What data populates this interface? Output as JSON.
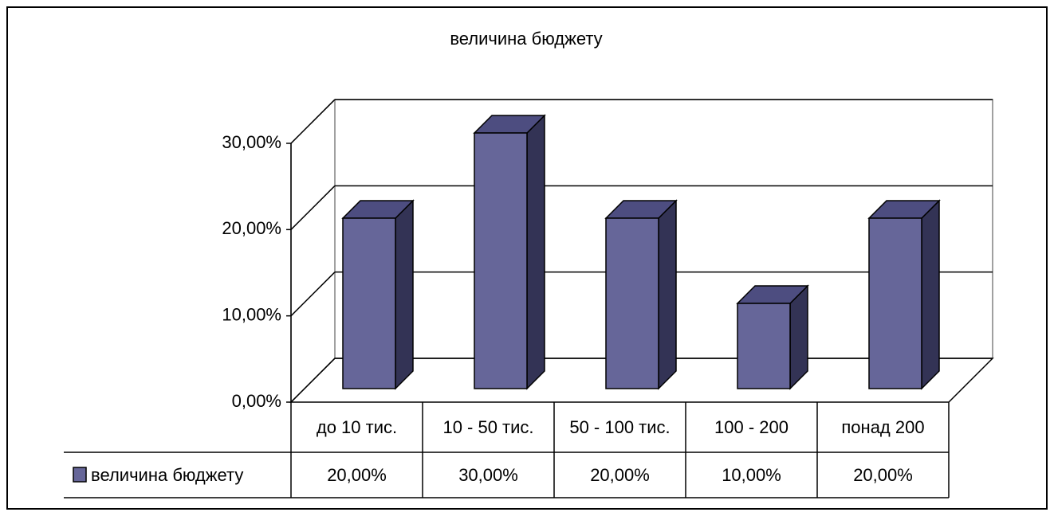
{
  "chart_data": {
    "type": "bar",
    "title": "величина бюджету",
    "categories": [
      "до 10 тис.",
      "10 - 50 тис.",
      "50 - 100 тис.",
      "100 - 200",
      "понад 200"
    ],
    "series": [
      {
        "name": "величина бюджету",
        "color": "#666699",
        "values": [
          20,
          30,
          20,
          10,
          20
        ],
        "value_labels": [
          "20,00%",
          "30,00%",
          "20,00%",
          "10,00%",
          "20,00%"
        ]
      }
    ],
    "ylim": [
      0,
      30
    ],
    "yticks": [
      {
        "value": 0,
        "label": "0,00%"
      },
      {
        "value": 10,
        "label": "10,00%"
      },
      {
        "value": 20,
        "label": "20,00%"
      },
      {
        "value": 30,
        "label": "30,00%"
      }
    ],
    "grid": true
  }
}
